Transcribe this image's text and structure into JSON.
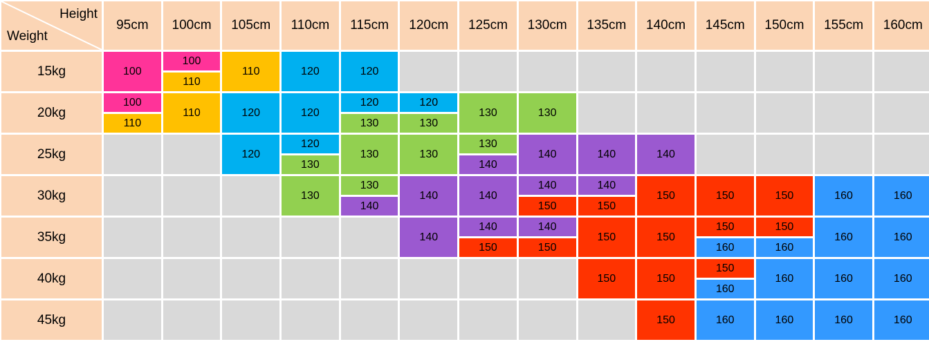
{
  "corner": {
    "top_label": "Height",
    "side_label": "Weight"
  },
  "heights": [
    "95cm",
    "100cm",
    "105cm",
    "110cm",
    "115cm",
    "120cm",
    "125cm",
    "130cm",
    "135cm",
    "140cm",
    "145cm",
    "150cm",
    "155cm",
    "160cm"
  ],
  "weights": [
    "15kg",
    "20kg",
    "25kg",
    "30kg",
    "35kg",
    "40kg",
    "45kg"
  ],
  "colors": {
    "100": "#ff3399",
    "110": "#ffc000",
    "120": "#00b0f0",
    "130": "#92d050",
    "140": "#9b59d0",
    "150": "#ff3300",
    "160": "#3399ff",
    "empty": "#d9d9d9",
    "header": "#fbd5b5"
  },
  "grid": [
    [
      [
        "100"
      ],
      [
        "100",
        "110"
      ],
      [
        "110"
      ],
      [
        "120"
      ],
      [
        "120"
      ],
      [],
      [],
      [],
      [],
      [],
      [],
      [],
      [],
      []
    ],
    [
      [
        "100",
        "110"
      ],
      [
        "110"
      ],
      [
        "120"
      ],
      [
        "120"
      ],
      [
        "120",
        "130"
      ],
      [
        "120",
        "130"
      ],
      [
        "130"
      ],
      [
        "130"
      ],
      [],
      [],
      [],
      [],
      [],
      []
    ],
    [
      [],
      [],
      [
        "120"
      ],
      [
        "120",
        "130"
      ],
      [
        "130"
      ],
      [
        "130"
      ],
      [
        "130",
        "140"
      ],
      [
        "140"
      ],
      [
        "140"
      ],
      [
        "140"
      ],
      [],
      [],
      [],
      []
    ],
    [
      [],
      [],
      [],
      [
        "130"
      ],
      [
        "130",
        "140"
      ],
      [
        "140"
      ],
      [
        "140"
      ],
      [
        "140",
        "150"
      ],
      [
        "140",
        "150"
      ],
      [
        "150"
      ],
      [
        "150"
      ],
      [
        "150"
      ],
      [
        "160"
      ],
      [
        "160"
      ]
    ],
    [
      [],
      [],
      [],
      [],
      [],
      [
        "140"
      ],
      [
        "140",
        "150"
      ],
      [
        "140",
        "150"
      ],
      [
        "150"
      ],
      [
        "150"
      ],
      [
        "150",
        "160"
      ],
      [
        "150",
        "160"
      ],
      [
        "160"
      ],
      [
        "160"
      ]
    ],
    [
      [],
      [],
      [],
      [],
      [],
      [],
      [],
      [],
      [
        "150"
      ],
      [
        "150"
      ],
      [
        "150",
        "160"
      ],
      [
        "160"
      ],
      [
        "160"
      ],
      [
        "160"
      ]
    ],
    [
      [],
      [],
      [],
      [],
      [],
      [],
      [],
      [],
      [],
      [
        "150"
      ],
      [
        "160"
      ],
      [
        "160"
      ],
      [
        "160"
      ],
      [
        "160"
      ]
    ]
  ]
}
